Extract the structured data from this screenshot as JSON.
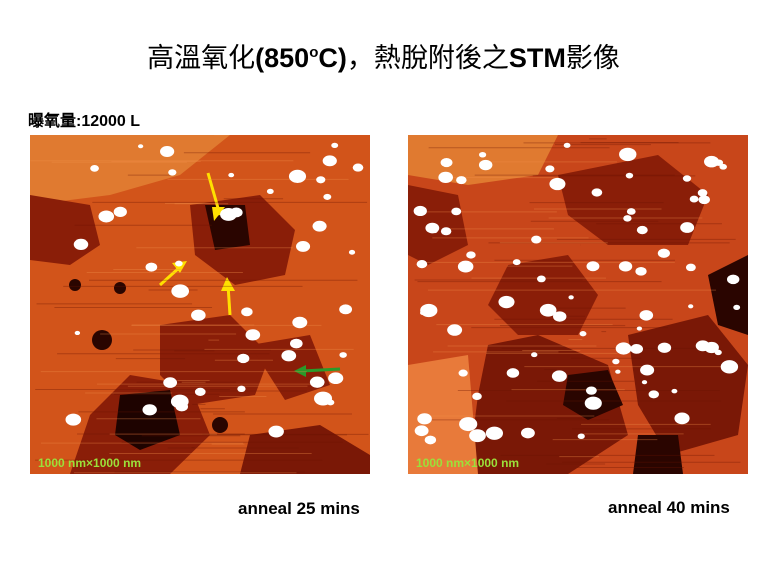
{
  "title": {
    "part1": "高溫氧化",
    "part2": "(850",
    "superscript": "o",
    "part3": "C)",
    "part4": "，熱脫附後之",
    "part5": "STM",
    "part6": "影像"
  },
  "exposure_label": "曝氧量:12000 L",
  "images": [
    {
      "scale_label": "1000 nm×1000 nm",
      "caption": "anneal 25 mins"
    },
    {
      "scale_label": "1000 nm×1000 nm",
      "caption": "anneal 40 mins"
    }
  ]
}
